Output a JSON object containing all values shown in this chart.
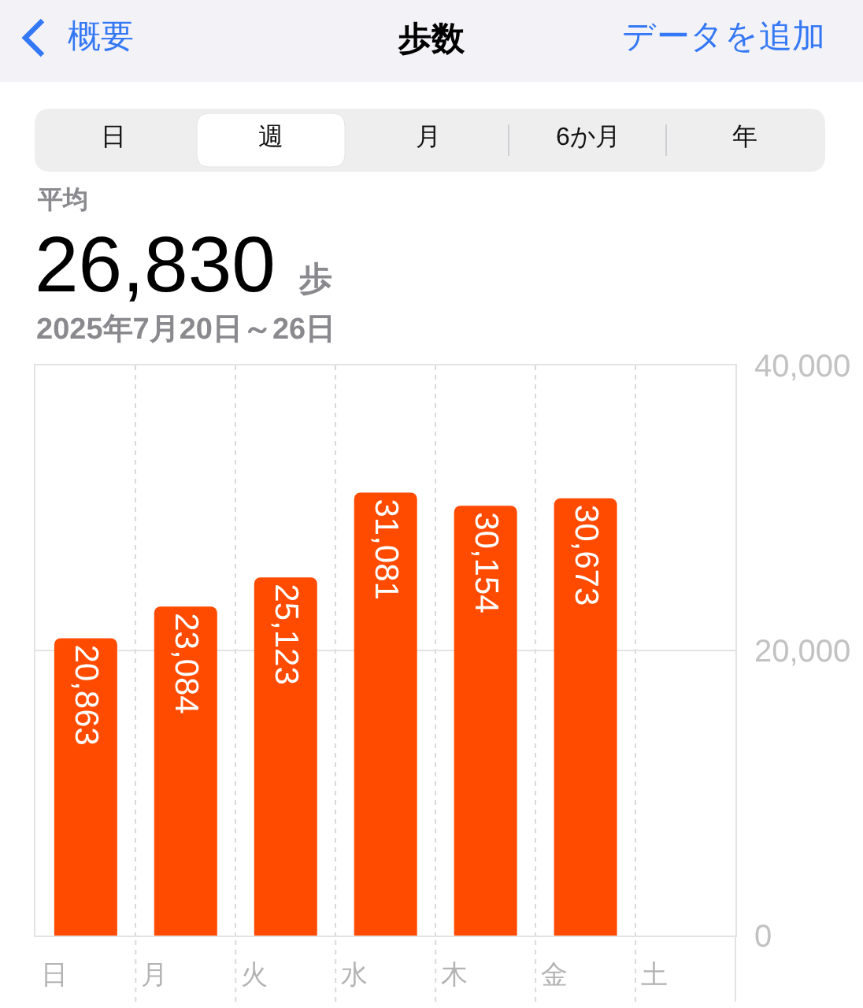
{
  "chart_data": {
    "type": "bar",
    "title": "歩数",
    "subtitle": "2025年7月20日～26日",
    "categories": [
      "日",
      "月",
      "火",
      "水",
      "木",
      "金",
      "土"
    ],
    "values": [
      20863,
      23084,
      25123,
      31081,
      30154,
      30673,
      null
    ],
    "value_labels": [
      "20,863",
      "23,084",
      "25,123",
      "31,081",
      "30,154",
      "30,673",
      null
    ],
    "color": "#ff4b00",
    "ylim": [
      0,
      40000
    ],
    "yticks": [
      0,
      {
        "value": 20000,
        "label": "20,000"
      },
      {
        "value": 40000,
        "label": "40,000"
      }
    ],
    "grid": true,
    "annotations": [
      "概要",
      "データを追加",
      "日",
      "週",
      "月",
      "6か月",
      "年",
      "平均",
      "26,830",
      "歩"
    ]
  }
}
